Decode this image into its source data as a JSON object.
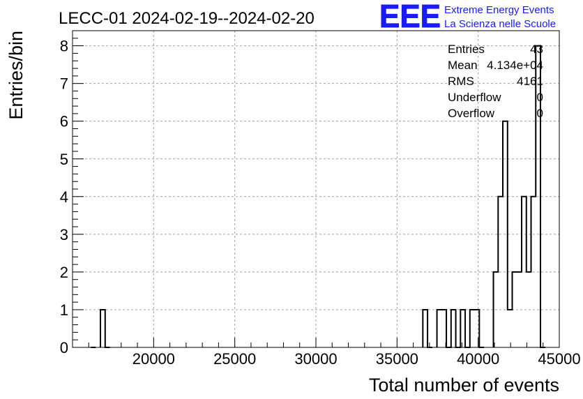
{
  "header": {
    "title": "LECC-01 2024-02-19--2024-02-20",
    "logo_text": "EEE",
    "logo_line1": "Extreme Energy Events",
    "logo_line2": "La Scienza nelle Scuole"
  },
  "stats": [
    {
      "label": "Entries",
      "value": "43"
    },
    {
      "label": "Mean",
      "value": "4.134e+04"
    },
    {
      "label": "RMS",
      "value": "4161"
    },
    {
      "label": "Underflow",
      "value": "0"
    },
    {
      "label": "Overflow",
      "value": "0"
    }
  ],
  "colors": {
    "logo": "#1a1aff",
    "line": "#000000",
    "grid": "#a0a0a0"
  },
  "chart_data": {
    "type": "histogram",
    "title": "LECC-01 2024-02-19--2024-02-20",
    "xlabel": "Total number of events",
    "ylabel": "Entries/bin",
    "xlim": [
      15000,
      45000
    ],
    "ylim": [
      0,
      8.4
    ],
    "grid": true,
    "xticks": [
      20000,
      25000,
      30000,
      35000,
      40000,
      45000
    ],
    "yticks": [
      0,
      1,
      2,
      3,
      4,
      5,
      6,
      7,
      8
    ],
    "bin_width": 290,
    "bins": [
      {
        "x0": 16130,
        "count": 0
      },
      {
        "x0": 16720,
        "count": 1
      },
      {
        "x0": 17010,
        "count": 0
      },
      {
        "x0": 36590,
        "count": 1
      },
      {
        "x0": 36880,
        "count": 0
      },
      {
        "x0": 37460,
        "count": 1
      },
      {
        "x0": 37750,
        "count": 1
      },
      {
        "x0": 38040,
        "count": 0
      },
      {
        "x0": 38330,
        "count": 1
      },
      {
        "x0": 38620,
        "count": 0
      },
      {
        "x0": 38910,
        "count": 1
      },
      {
        "x0": 39200,
        "count": 0
      },
      {
        "x0": 39490,
        "count": 1
      },
      {
        "x0": 39780,
        "count": 1
      },
      {
        "x0": 40070,
        "count": 0
      },
      {
        "x0": 40940,
        "count": 2
      },
      {
        "x0": 41230,
        "count": 4
      },
      {
        "x0": 41520,
        "count": 6
      },
      {
        "x0": 41810,
        "count": 1
      },
      {
        "x0": 42100,
        "count": 2
      },
      {
        "x0": 42390,
        "count": 2
      },
      {
        "x0": 42680,
        "count": 4
      },
      {
        "x0": 42970,
        "count": 2
      },
      {
        "x0": 43260,
        "count": 4
      },
      {
        "x0": 43550,
        "count": 8
      },
      {
        "x0": 43840,
        "count": 0
      }
    ]
  }
}
